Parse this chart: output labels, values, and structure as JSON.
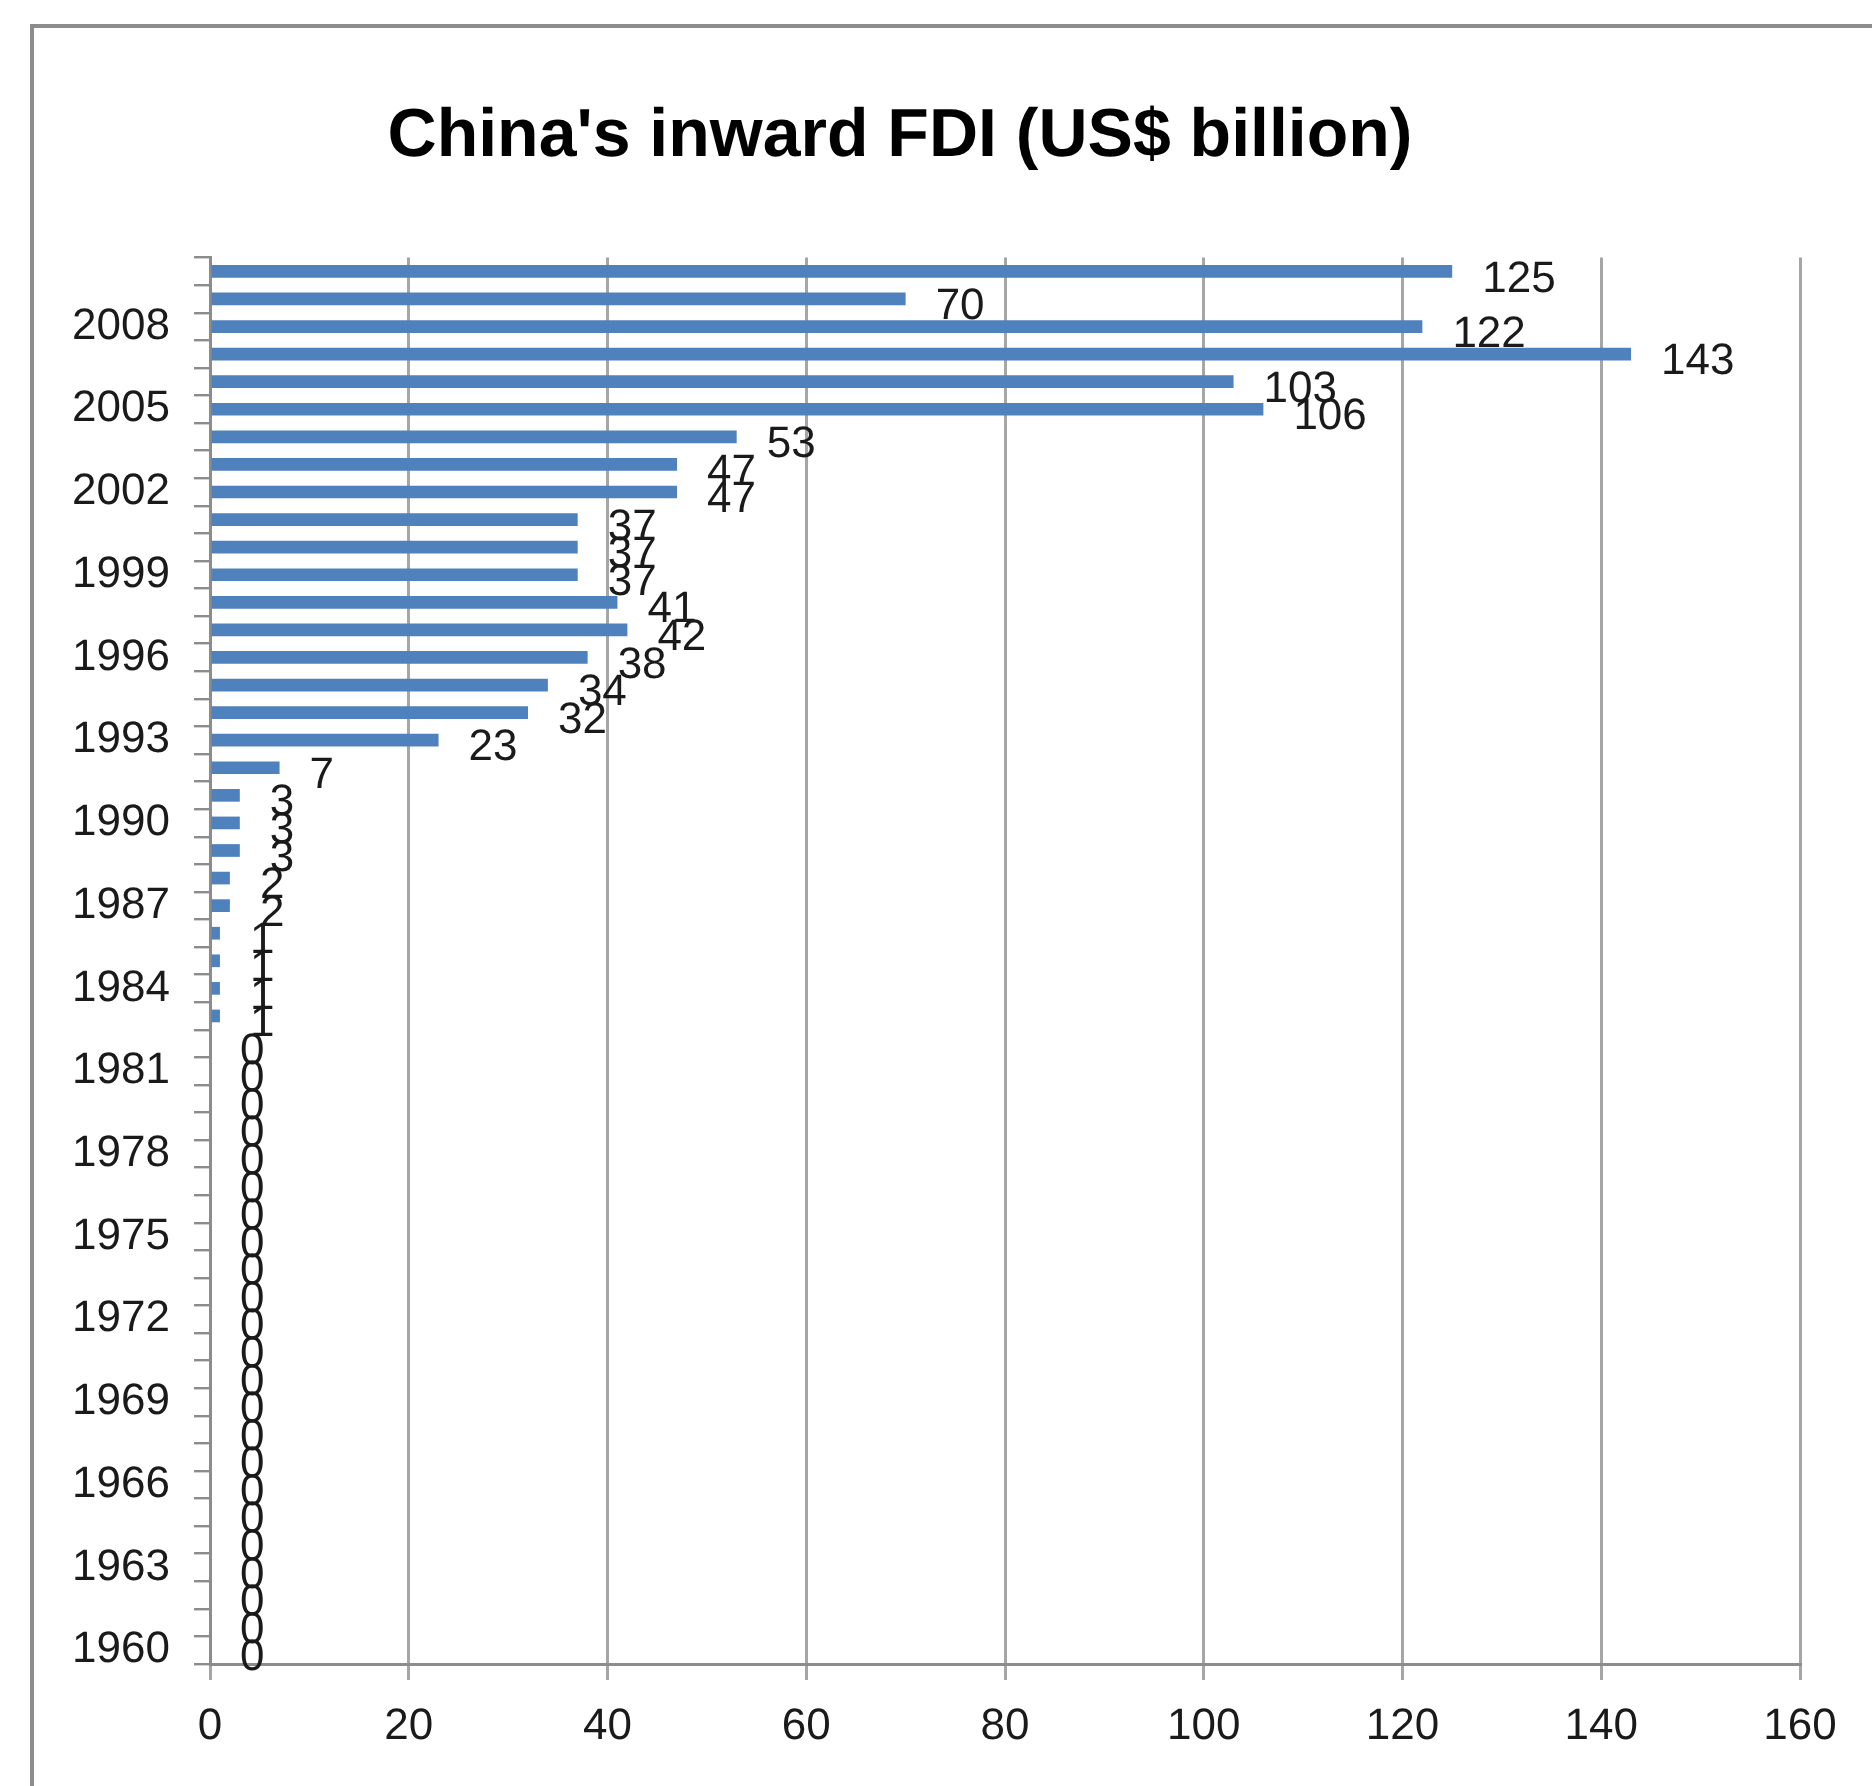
{
  "chart_data": {
    "type": "bar",
    "orientation": "horizontal",
    "title": "China's inward FDI (US$ billion)",
    "categories": [
      null,
      null,
      "2008",
      null,
      null,
      "2005",
      null,
      null,
      "2002",
      null,
      null,
      "1999",
      null,
      null,
      "1996",
      null,
      null,
      "1993",
      null,
      null,
      "1990",
      null,
      null,
      "1987",
      null,
      null,
      "1984",
      null,
      null,
      "1981",
      null,
      null,
      "1978",
      null,
      null,
      "1975",
      null,
      null,
      "1972",
      null,
      null,
      "1969",
      null,
      null,
      "1966",
      null,
      null,
      "1963",
      null,
      null,
      "1960"
    ],
    "values": [
      125,
      70,
      122,
      143,
      103,
      106,
      53,
      47,
      47,
      37,
      37,
      37,
      41,
      42,
      38,
      34,
      32,
      23,
      7,
      3,
      3,
      3,
      2,
      2,
      1,
      1,
      1,
      1,
      0,
      0,
      0,
      0,
      0,
      0,
      0,
      0,
      0,
      0,
      0,
      0,
      0,
      0,
      0,
      0,
      0,
      0,
      0,
      0,
      0,
      0,
      0
    ],
    "color": "#4f81bd",
    "xlim": [
      0,
      160
    ],
    "xticks": [
      0,
      20,
      40,
      60,
      80,
      100,
      120,
      140,
      160
    ],
    "grid": "x",
    "legend": false,
    "data_labels": true
  }
}
